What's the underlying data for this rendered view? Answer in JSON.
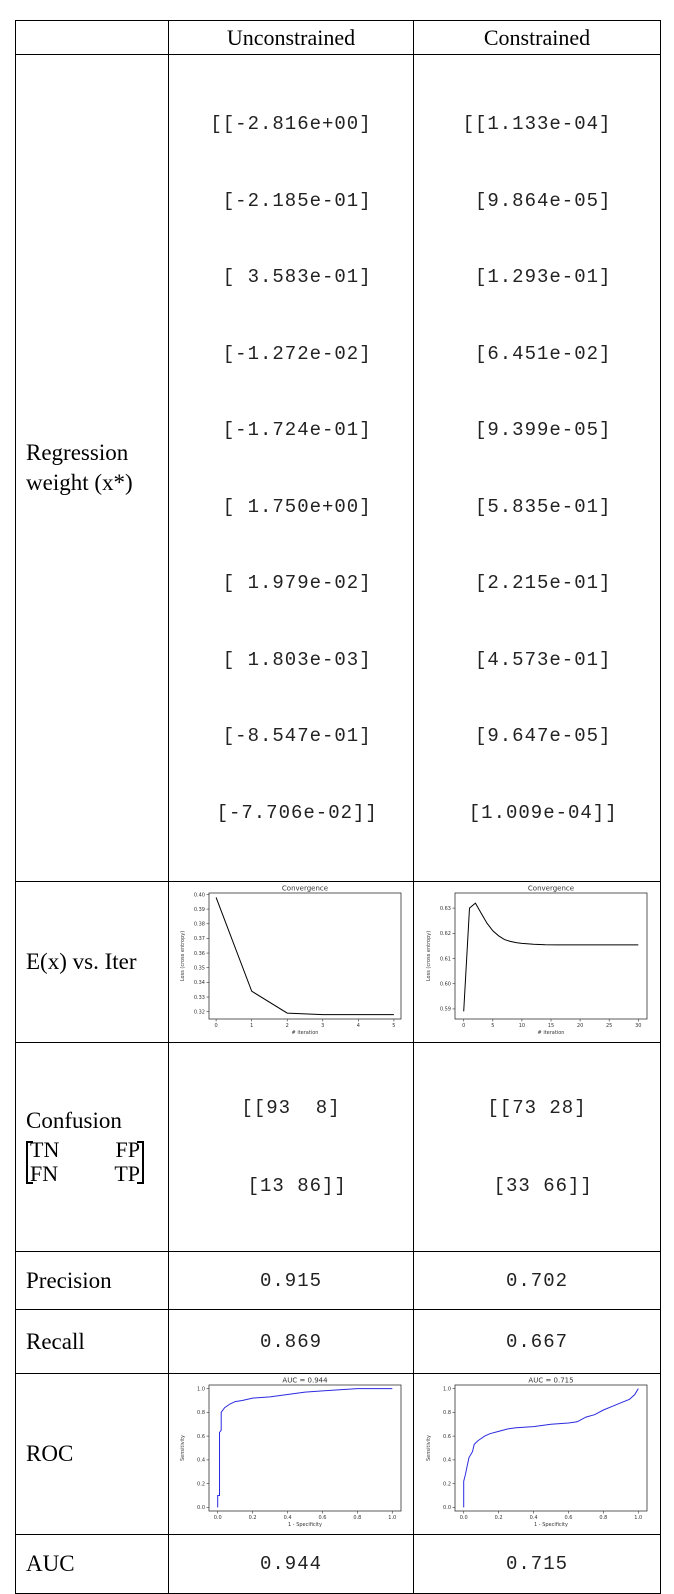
{
  "header": {
    "col1": "Unconstrained",
    "col2": "Constrained"
  },
  "rows": {
    "weights": {
      "label_line1": "Regression",
      "label_line2": "weight (x*)"
    },
    "convergence": {
      "label": "E(x) vs. Iter"
    },
    "confusion": {
      "label": "Confusion",
      "m_tn": "TN",
      "m_fp": "FP",
      "m_fn": "FN",
      "m_tp": "TP"
    },
    "precision": {
      "label": "Precision"
    },
    "recall": {
      "label": "Recall"
    },
    "roc": {
      "label": "ROC"
    },
    "auc": {
      "label": "AUC"
    }
  },
  "unconstrained": {
    "weights": [
      "[[-2.816e+00]",
      " [-2.185e-01]",
      " [ 3.583e-01]",
      " [-1.272e-02]",
      " [-1.724e-01]",
      " [ 1.750e+00]",
      " [ 1.979e-02]",
      " [ 1.803e-03]",
      " [-8.547e-01]",
      " [-7.706e-02]]"
    ],
    "confusion_line1": "[[93  8]",
    "confusion_line2": " [13 86]]",
    "precision": "0.915",
    "recall": "0.869",
    "auc": "0.944"
  },
  "constrained": {
    "weights": [
      "[[1.133e-04]",
      " [9.864e-05]",
      " [1.293e-01]",
      " [6.451e-02]",
      " [9.399e-05]",
      " [5.835e-01]",
      " [2.215e-01]",
      " [4.573e-01]",
      " [9.647e-05]",
      " [1.009e-04]]"
    ],
    "confusion_line1": "[[73 28]",
    "confusion_line2": " [33 66]]",
    "precision": "0.702",
    "recall": "0.667",
    "auc": "0.715"
  },
  "chart_data": [
    {
      "id": "conv-unconstrained",
      "type": "line",
      "title": "Convergence",
      "xlabel": "# iteration",
      "ylabel": "Loss (cross entropy)",
      "x": [
        0,
        1,
        2,
        3,
        4,
        5
      ],
      "values": [
        0.398,
        0.334,
        0.319,
        0.318,
        0.318,
        0.318
      ],
      "xlim": [
        -0.2,
        5.2
      ],
      "ylim": [
        0.315,
        0.401
      ],
      "xticks": [
        0,
        1,
        2,
        3,
        4,
        5
      ],
      "yticks": [
        0.32,
        0.33,
        0.34,
        0.35,
        0.36,
        0.37,
        0.38,
        0.39,
        0.4
      ],
      "ytick_labels": [
        "0.32",
        "0.33",
        "0.34",
        "0.35",
        "0.36",
        "0.37",
        "0.38",
        "0.39",
        "0.40"
      ],
      "color": "#000000"
    },
    {
      "id": "conv-constrained",
      "type": "line",
      "title": "Convergence",
      "xlabel": "# iteration",
      "ylabel": "Loss (cross entropy)",
      "x": [
        0,
        1,
        2,
        3,
        4,
        5,
        6,
        7,
        8,
        9,
        10,
        12,
        14,
        16,
        18,
        20,
        25,
        30
      ],
      "values": [
        0.589,
        0.63,
        0.632,
        0.628,
        0.624,
        0.621,
        0.619,
        0.6175,
        0.6168,
        0.6163,
        0.616,
        0.6157,
        0.6155,
        0.6154,
        0.6154,
        0.6154,
        0.6154,
        0.6154
      ],
      "xlim": [
        -1.5,
        31.5
      ],
      "ylim": [
        0.586,
        0.636
      ],
      "xticks": [
        0,
        5,
        10,
        15,
        20,
        25,
        30
      ],
      "yticks": [
        0.59,
        0.6,
        0.61,
        0.62,
        0.63
      ],
      "ytick_labels": [
        "0.59",
        "0.60",
        "0.61",
        "0.62",
        "0.63"
      ],
      "color": "#000000"
    },
    {
      "id": "roc-unconstrained",
      "type": "line",
      "title": "AUC = 0.944",
      "xlabel": "1 - Specificity",
      "ylabel": "Sensitivity",
      "x": [
        0.0,
        0.0,
        0.01,
        0.01,
        0.02,
        0.02,
        0.04,
        0.05,
        0.07,
        0.1,
        0.14,
        0.2,
        0.3,
        0.4,
        0.5,
        0.6,
        0.7,
        0.8,
        0.9,
        1.0
      ],
      "values": [
        0.0,
        0.1,
        0.1,
        0.63,
        0.65,
        0.8,
        0.84,
        0.85,
        0.87,
        0.89,
        0.9,
        0.92,
        0.93,
        0.95,
        0.97,
        0.98,
        0.99,
        1.0,
        1.0,
        1.0
      ],
      "xlim": [
        -0.05,
        1.05
      ],
      "ylim": [
        -0.03,
        1.03
      ],
      "xticks": [
        0.0,
        0.2,
        0.4,
        0.6,
        0.8,
        1.0
      ],
      "yticks": [
        0.0,
        0.2,
        0.4,
        0.6,
        0.8,
        1.0
      ],
      "ytick_labels": [
        "0.0",
        "0.2",
        "0.4",
        "0.6",
        "0.8",
        "1.0"
      ],
      "color": "#2a2ae0"
    },
    {
      "id": "roc-constrained",
      "type": "line",
      "title": "AUC = 0.715",
      "xlabel": "1 - Specificity",
      "ylabel": "Sensitivity",
      "x": [
        0.0,
        0.0,
        0.01,
        0.02,
        0.03,
        0.05,
        0.06,
        0.08,
        0.1,
        0.12,
        0.15,
        0.2,
        0.25,
        0.3,
        0.4,
        0.5,
        0.6,
        0.65,
        0.7,
        0.75,
        0.8,
        0.85,
        0.9,
        0.95,
        0.98,
        1.0
      ],
      "values": [
        0.0,
        0.22,
        0.28,
        0.35,
        0.42,
        0.47,
        0.53,
        0.56,
        0.58,
        0.6,
        0.62,
        0.64,
        0.66,
        0.67,
        0.68,
        0.7,
        0.71,
        0.72,
        0.76,
        0.78,
        0.82,
        0.85,
        0.88,
        0.91,
        0.95,
        1.0
      ],
      "xlim": [
        -0.05,
        1.05
      ],
      "ylim": [
        -0.03,
        1.03
      ],
      "xticks": [
        0.0,
        0.2,
        0.4,
        0.6,
        0.8,
        1.0
      ],
      "yticks": [
        0.0,
        0.2,
        0.4,
        0.6,
        0.8,
        1.0
      ],
      "ytick_labels": [
        "0.0",
        "0.2",
        "0.4",
        "0.6",
        "0.8",
        "1.0"
      ],
      "color": "#2a2ae0"
    }
  ]
}
